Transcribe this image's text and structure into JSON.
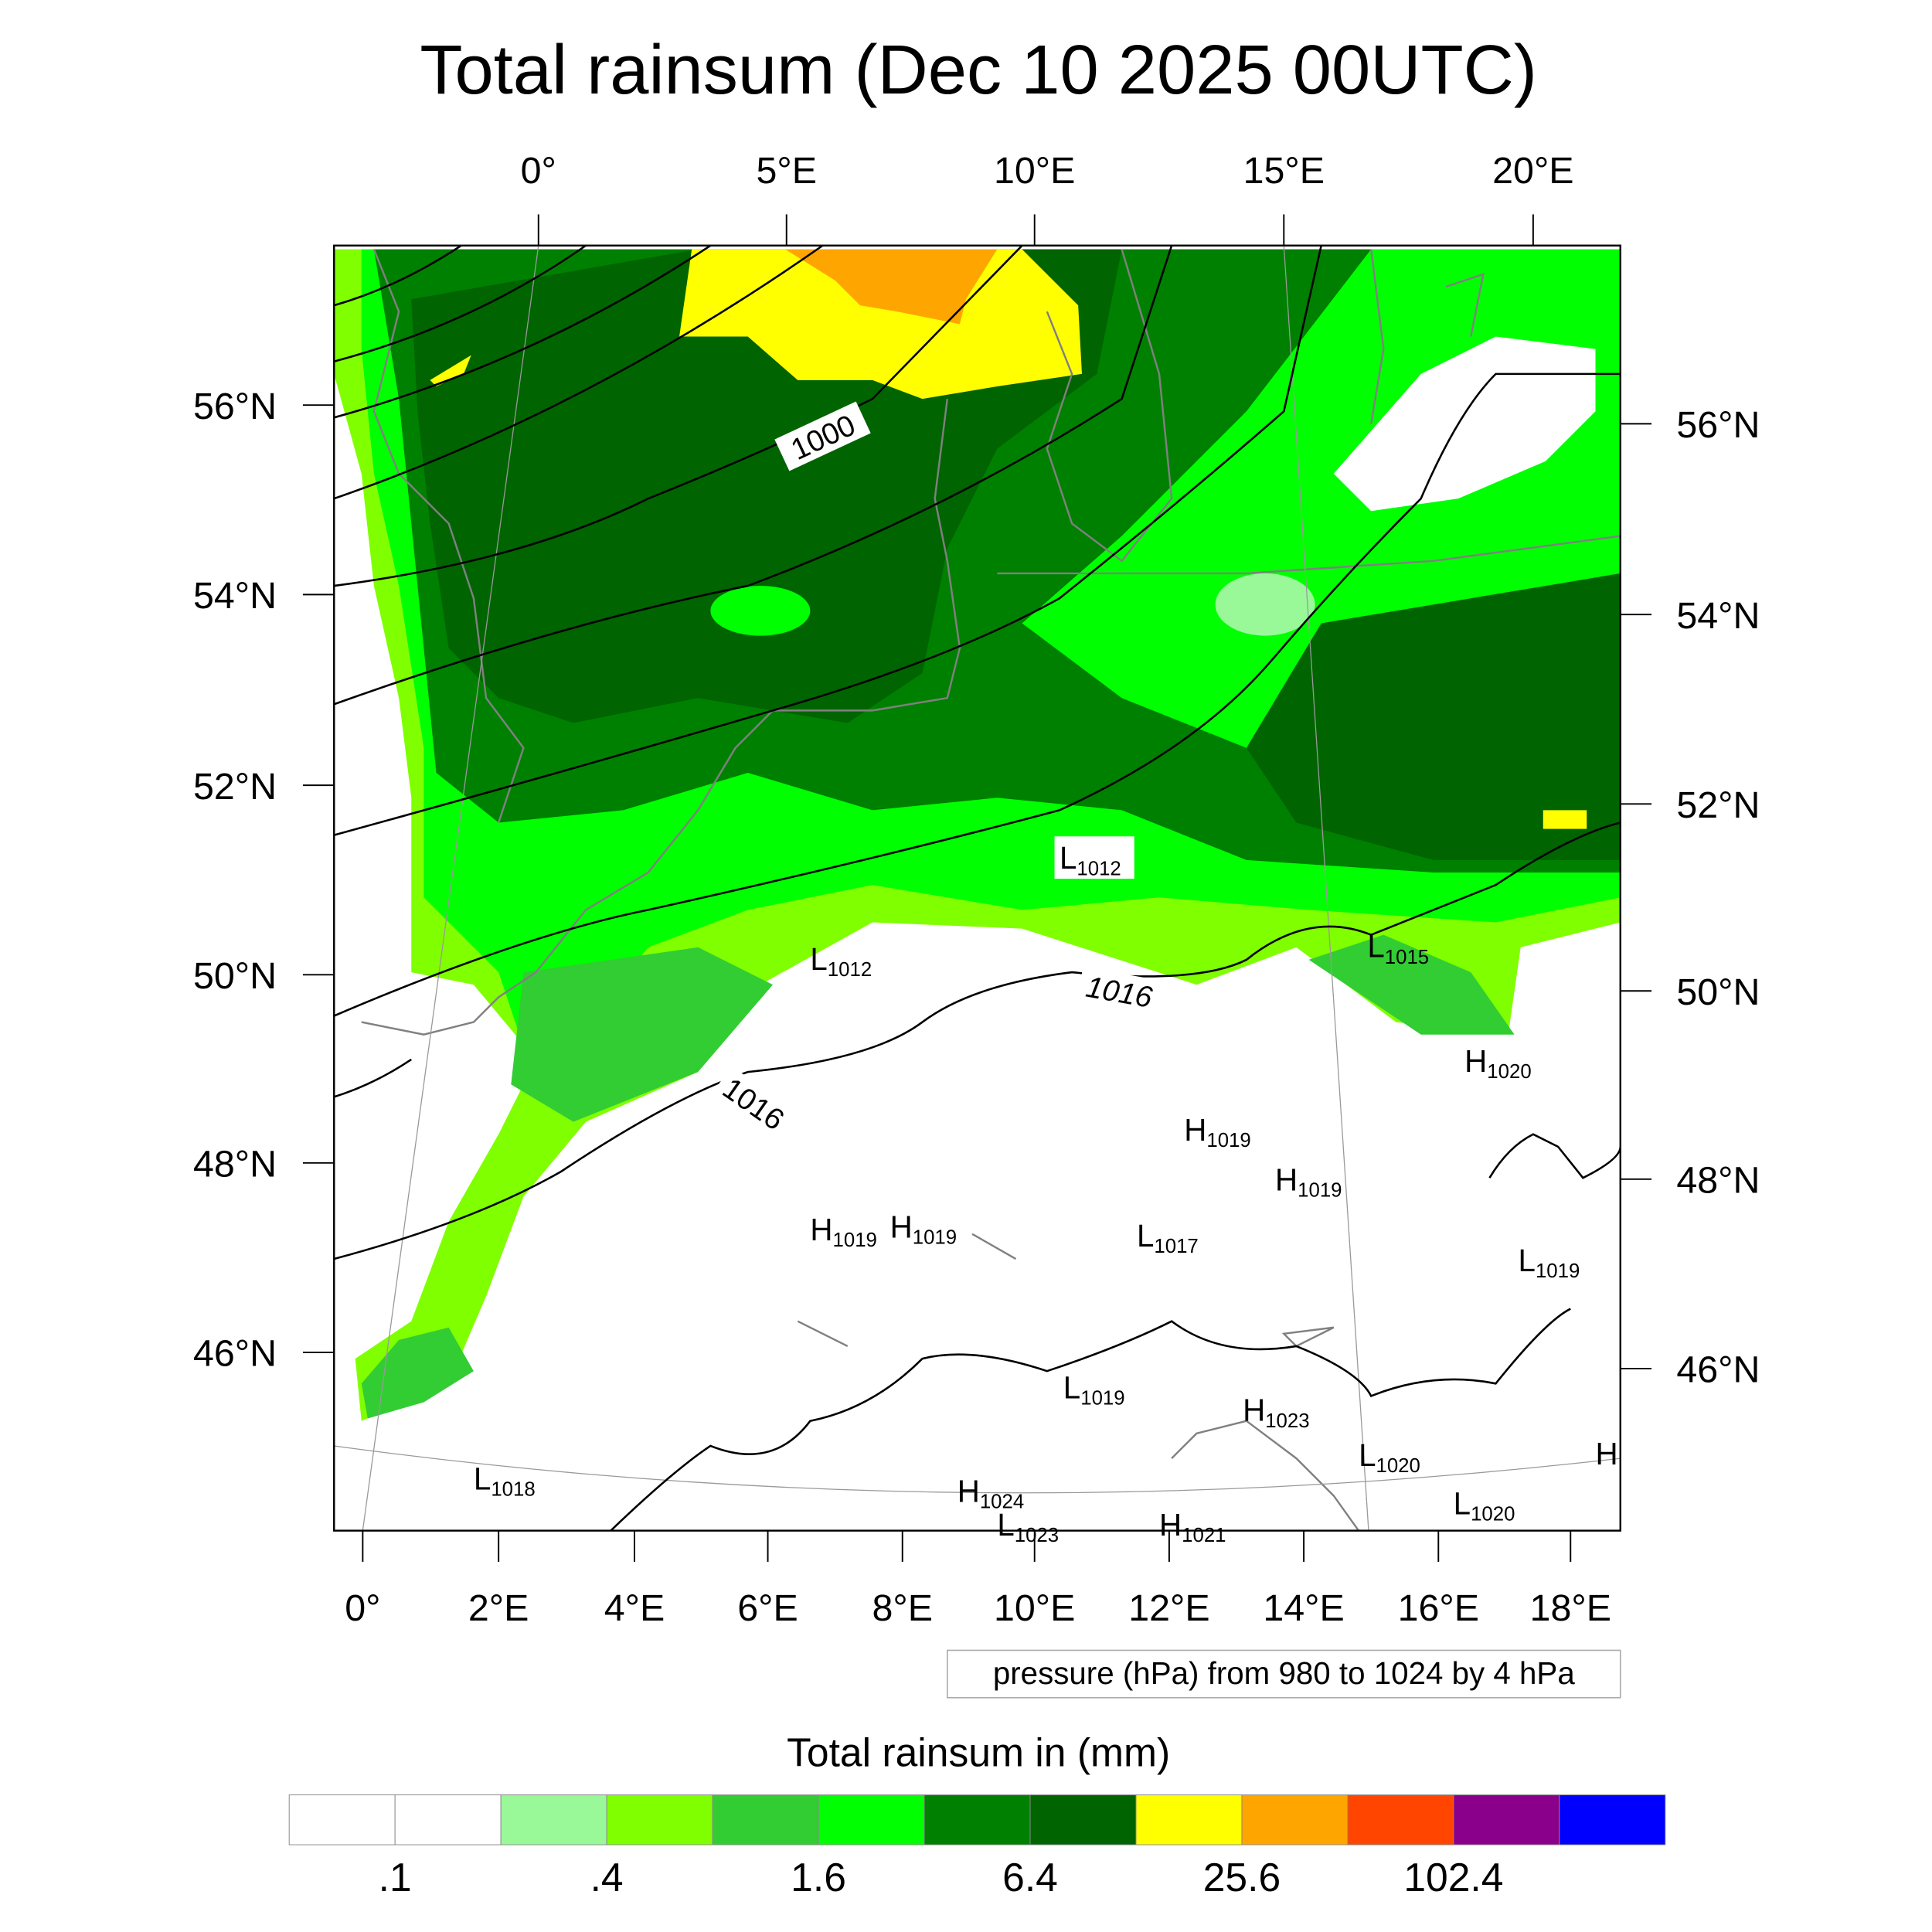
{
  "title": "Total rainsum (Dec 10 2025 00UTC)",
  "top_lon_labels": [
    "0°",
    "5°E",
    "10°E",
    "15°E",
    "20°E"
  ],
  "bottom_lon_labels": [
    "0°",
    "2°E",
    "4°E",
    "6°E",
    "8°E",
    "10°E",
    "12°E",
    "14°E",
    "16°E",
    "18°E"
  ],
  "left_lat_labels": [
    "56°N",
    "54°N",
    "52°N",
    "50°N",
    "48°N",
    "46°N"
  ],
  "right_lat_labels": [
    "56°N",
    "54°N",
    "52°N",
    "50°N",
    "48°N",
    "46°N"
  ],
  "contour_labels": [
    "1000",
    "1016",
    "1016"
  ],
  "pressure_centers": [
    {
      "type": "L",
      "value": "1012"
    },
    {
      "type": "L",
      "value": "1012"
    },
    {
      "type": "L",
      "value": "1015"
    },
    {
      "type": "H",
      "value": "1020"
    },
    {
      "type": "H",
      "value": "1019"
    },
    {
      "type": "H",
      "value": "1019"
    },
    {
      "type": "H",
      "value": "1019"
    },
    {
      "type": "H",
      "value": "1019"
    },
    {
      "type": "L",
      "value": "1017"
    },
    {
      "type": "L",
      "value": "1019"
    },
    {
      "type": "L",
      "value": "1019"
    },
    {
      "type": "H",
      "value": "1023"
    },
    {
      "type": "L",
      "value": "1020"
    },
    {
      "type": "H",
      "value": ""
    },
    {
      "type": "L",
      "value": "1018"
    },
    {
      "type": "H",
      "value": "1024"
    },
    {
      "type": "L",
      "value": "1023"
    },
    {
      "type": "H",
      "value": "1021"
    },
    {
      "type": "L",
      "value": "1020"
    }
  ],
  "contour_info": "pressure (hPa) from 980 to 1024 by 4 hPa",
  "colorbar": {
    "title": "Total rainsum in (mm)",
    "colors": [
      "#ffffff",
      "#ffffff",
      "#99f999",
      "#80ff00",
      "#32cd32",
      "#00ff00",
      "#008000",
      "#006400",
      "#ffff00",
      "#ffa500",
      "#ff4500",
      "#8b008b",
      "#0000ff"
    ],
    "labels": [
      ".1",
      ".4",
      "1.6",
      "6.4",
      "25.6",
      "102.4"
    ]
  }
}
